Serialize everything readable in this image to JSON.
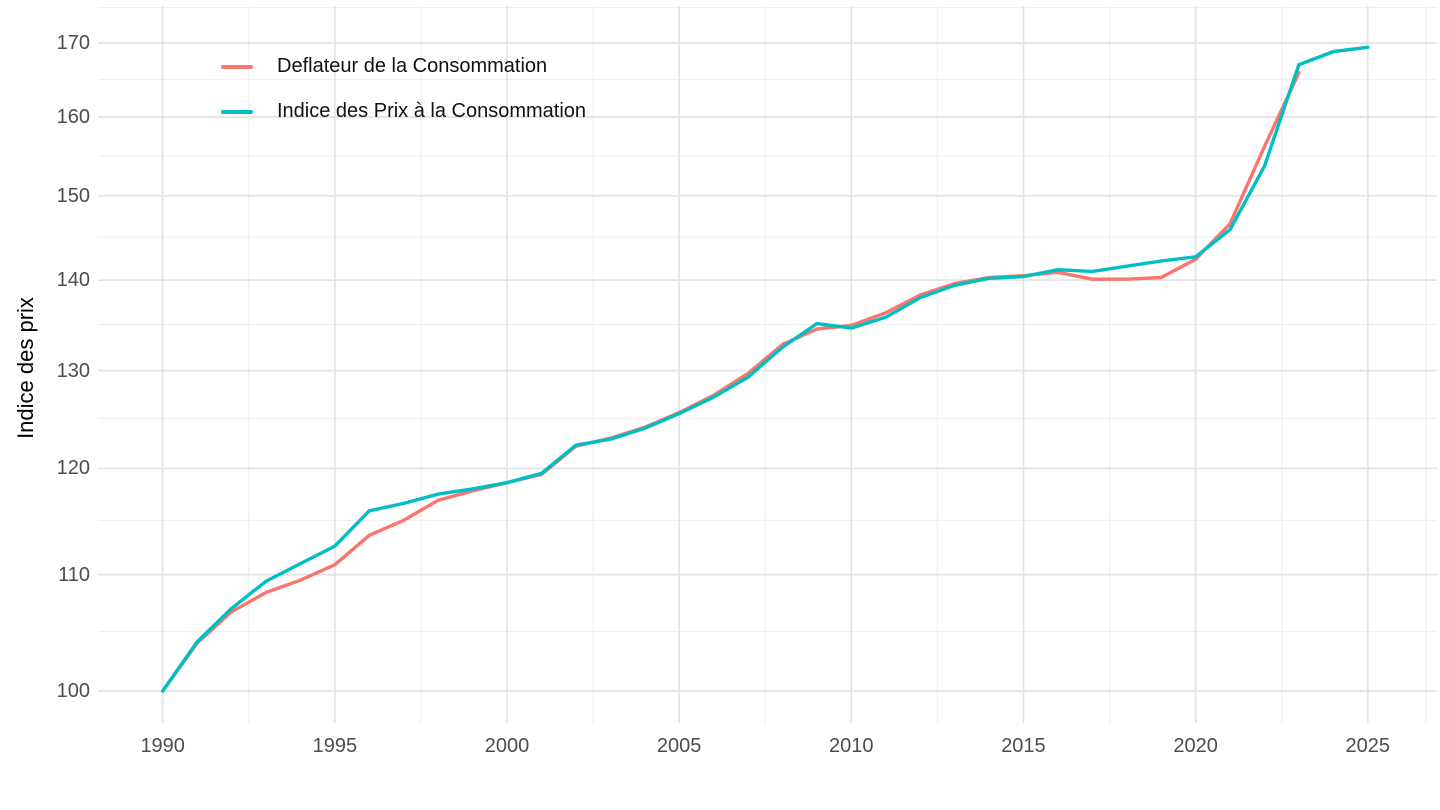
{
  "chart_data": {
    "type": "line",
    "title": "",
    "xlabel": "",
    "ylabel": "Indice des prix",
    "y_scale": "log10",
    "ylim": [
      97.4,
      174
    ],
    "xlim": [
      1988.25,
      2026.75
    ],
    "grid": true,
    "legend_position": "top-left-inside",
    "background_color": "#ffffff",
    "grid_major_color": "#e3e3e3",
    "grid_minor_color": "#efefef",
    "axis_text_color": "#4d4d4d",
    "y_ticks_major": [
      100,
      110,
      120,
      130,
      140,
      150,
      160,
      170
    ],
    "y_ticks_minor": [
      105,
      115,
      125,
      135,
      145,
      155,
      165,
      175
    ],
    "y_tick_labels": [
      "100",
      "110",
      "120",
      "130",
      "140",
      "150",
      "160",
      "170"
    ],
    "x_ticks_major": [
      1990,
      1995,
      2000,
      2005,
      2010,
      2015,
      2020,
      2025
    ],
    "x_ticks_minor": [
      1992.5,
      1997.5,
      2002.5,
      2007.5,
      2012.5,
      2017.5,
      2022.5,
      2026.7
    ],
    "x_tick_labels": [
      "1990",
      "1995",
      "2000",
      "2005",
      "2010",
      "2015",
      "2020",
      "2025"
    ],
    "series": [
      {
        "name": "Deflateur de la Consommation",
        "color": "#F8766D",
        "years": [
          1990,
          1991,
          1992,
          1993,
          1994,
          1995,
          1996,
          1997,
          1998,
          1999,
          2000,
          2001,
          2002,
          2003,
          2004,
          2005,
          2006,
          2007,
          2008,
          2009,
          2010,
          2011,
          2012,
          2013,
          2014,
          2015,
          2016,
          2017,
          2018,
          2019,
          2020,
          2021,
          2022,
          2023
        ],
        "values": [
          100.0,
          104.0,
          106.7,
          108.4,
          109.5,
          110.9,
          113.6,
          115.0,
          116.9,
          117.8,
          118.6,
          119.4,
          122.2,
          123.0,
          124.1,
          125.6,
          127.4,
          129.7,
          132.8,
          134.5,
          134.9,
          136.3,
          138.3,
          139.6,
          140.3,
          140.5,
          140.9,
          140.1,
          140.1,
          140.3,
          142.4,
          146.6,
          156.2,
          165.9
        ]
      },
      {
        "name": "Indice des Prix à la Consommation",
        "color": "#00BFC4",
        "years": [
          1990,
          1991,
          1992,
          1993,
          1994,
          1995,
          1996,
          1997,
          1998,
          1999,
          2000,
          2001,
          2002,
          2003,
          2004,
          2005,
          2006,
          2007,
          2008,
          2009,
          2010,
          2011,
          2012,
          2013,
          2014,
          2015,
          2016,
          2017,
          2018,
          2019,
          2020,
          2021,
          2022,
          2023,
          2024,
          2025
        ],
        "values": [
          100.0,
          104.1,
          107.0,
          109.4,
          111.0,
          112.6,
          115.9,
          116.6,
          117.5,
          118.0,
          118.6,
          119.5,
          122.3,
          122.9,
          124.0,
          125.5,
          127.2,
          129.3,
          132.5,
          135.1,
          134.6,
          135.8,
          138.0,
          139.4,
          140.2,
          140.4,
          141.2,
          141.0,
          141.6,
          142.2,
          142.7,
          145.9,
          153.7,
          167.0,
          168.8,
          169.4
        ]
      }
    ]
  }
}
